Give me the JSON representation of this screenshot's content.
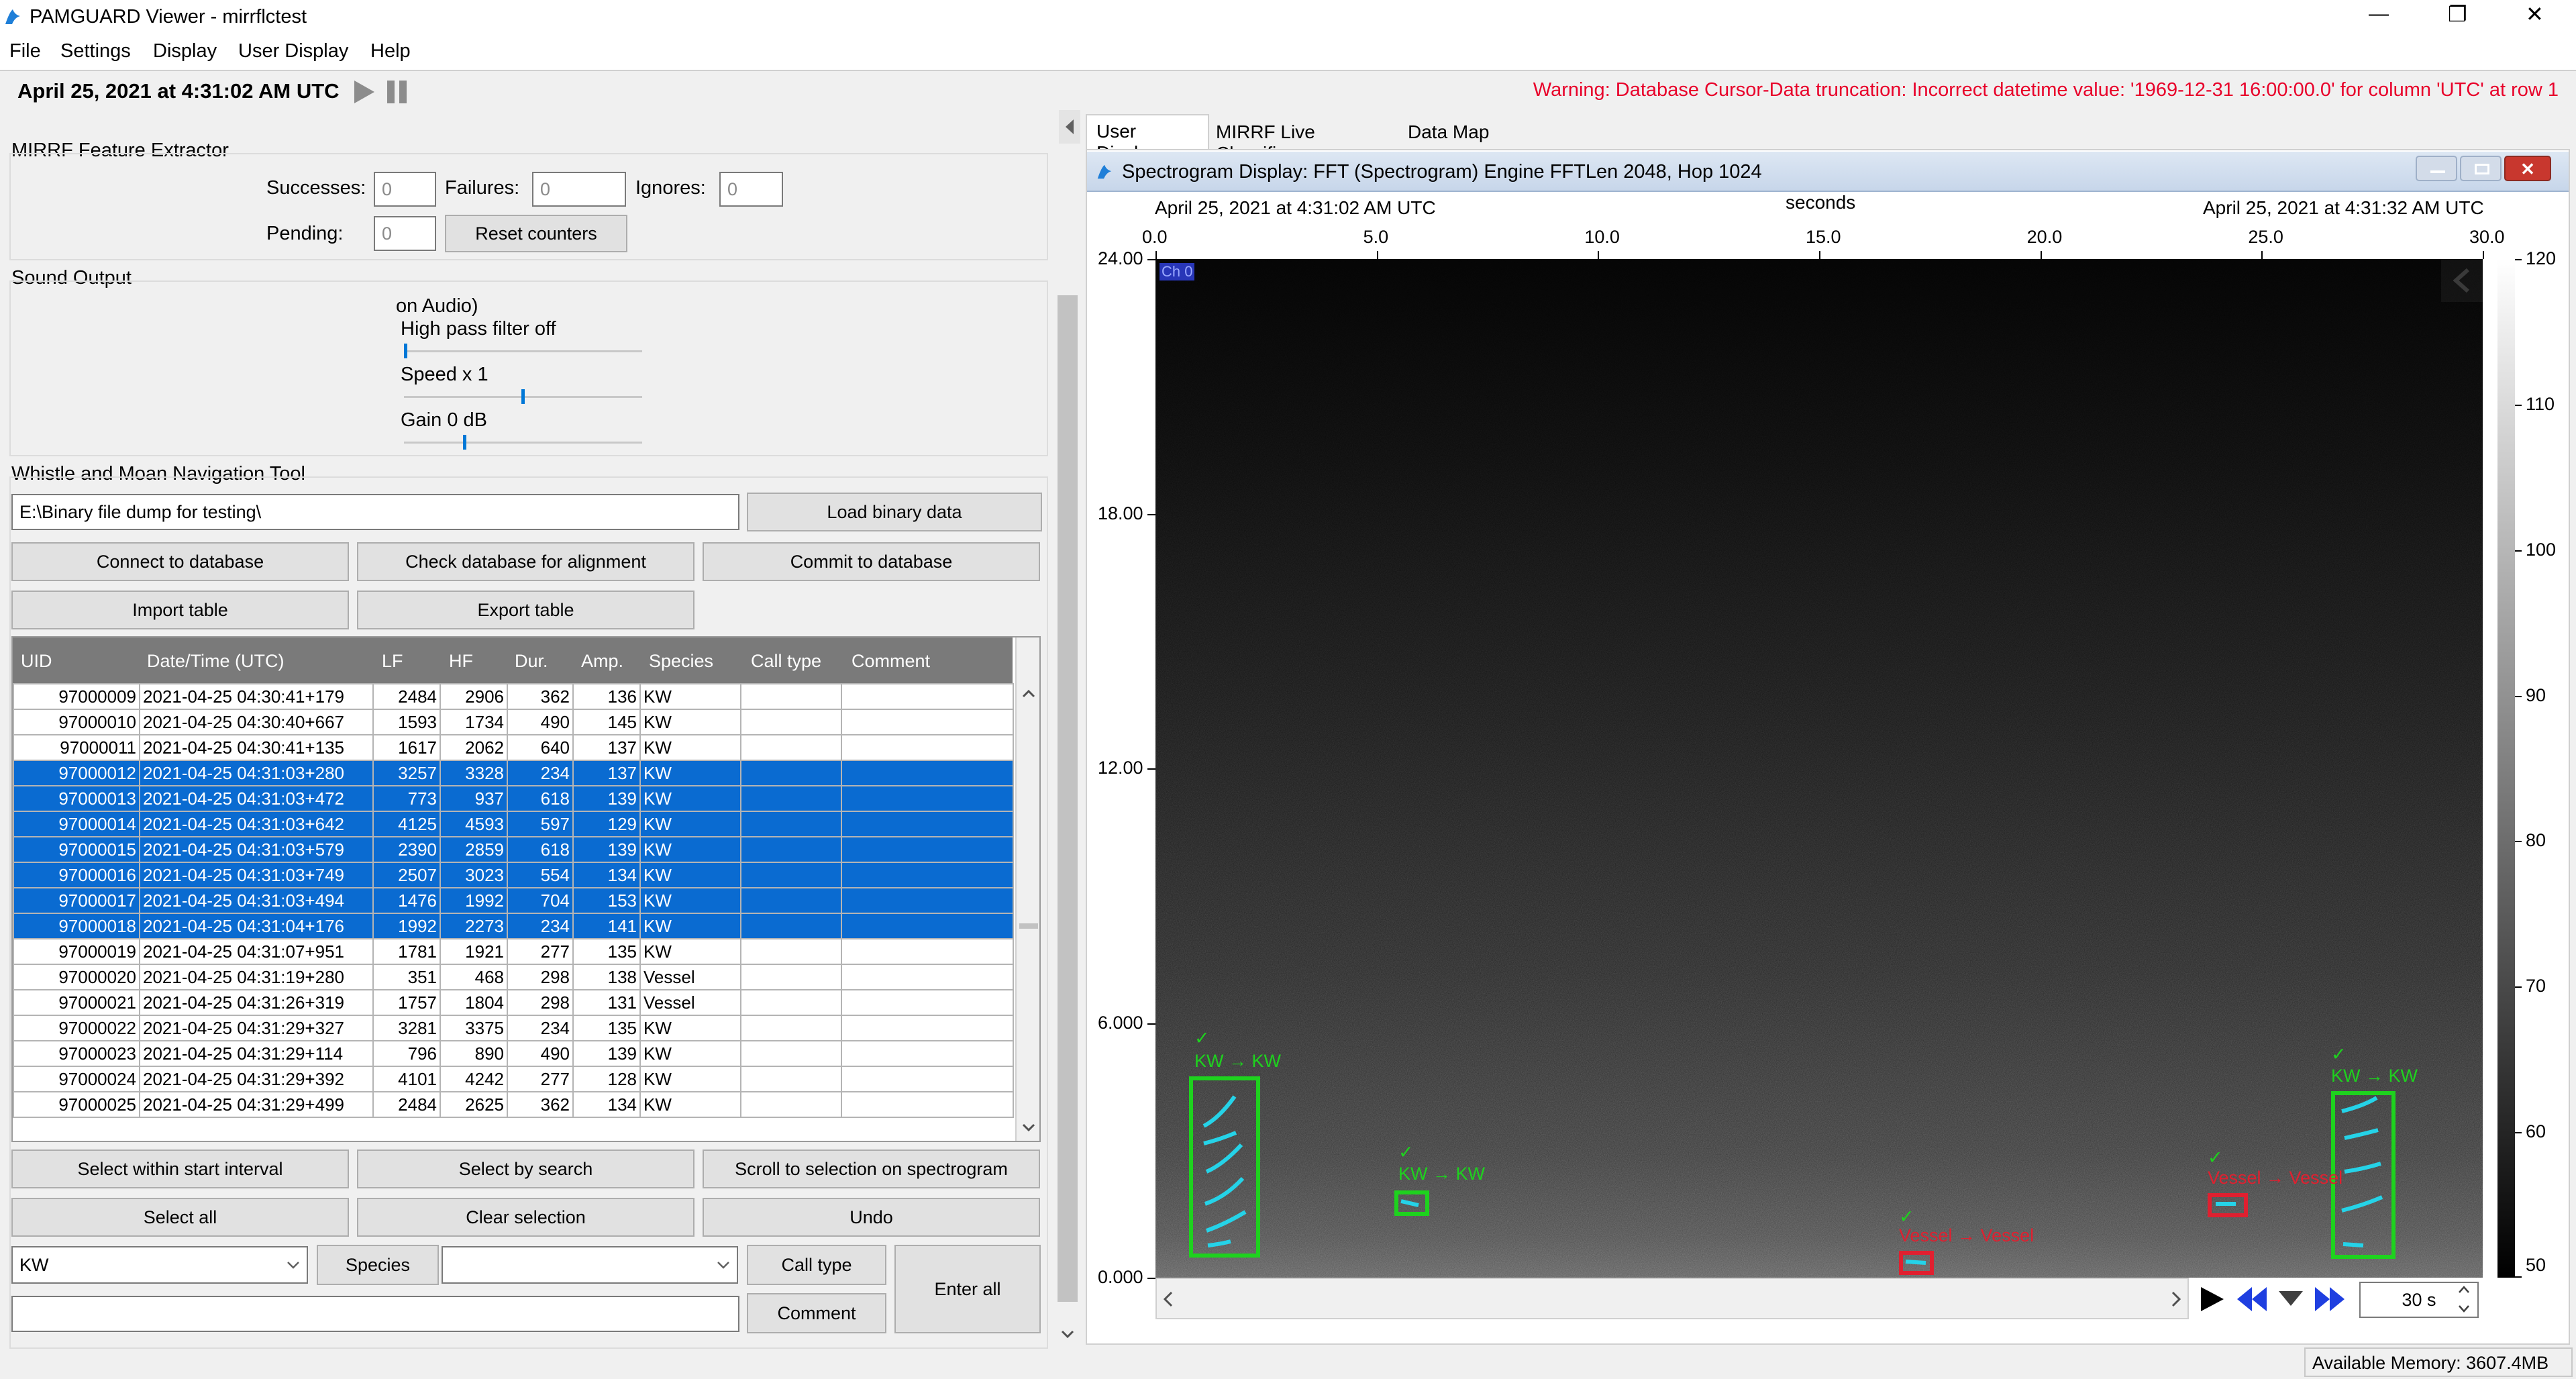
{
  "window": {
    "title": "PAMGUARD Viewer - mirrflctest",
    "controls": {
      "minimize": "—",
      "restore": "❐",
      "close": "✕"
    }
  },
  "menu": [
    "File",
    "Settings",
    "Display",
    "User Display",
    "Help"
  ],
  "timebar": {
    "datetime": "April 25, 2021 at 4:31:02 AM UTC"
  },
  "warning": "Warning: Database Cursor-Data truncation: Incorrect datetime value: '1969-12-31 16:00:00.0' for column 'UTC' at row 1",
  "mirrf": {
    "title": "MIRRF Feature Extractor",
    "successes_label": "Successes:",
    "successes_value": "0",
    "failures_label": "Failures:",
    "failures_value": "0",
    "ignores_label": "Ignores:",
    "ignores_value": "0",
    "pending_label": "Pending:",
    "pending_value": "0",
    "reset_label": "Reset counters"
  },
  "sound": {
    "title": "Sound Output",
    "on_audio": "on Audio)",
    "hpf": "High pass filter off",
    "speed": "Speed  x 1",
    "gain": "Gain 0 dB",
    "hpf_level": 0.0,
    "speed_level": 0.5,
    "gain_level": 0.25
  },
  "wmnt": {
    "title": "Whistle and Moan Navigation Tool",
    "path": "E:\\Binary file dump for testing\\",
    "load_binary": "Load binary data",
    "connect_db": "Connect to database",
    "check_db": "Check database for alignment",
    "commit_db": "Commit to database",
    "import_table": "Import table",
    "export_table": "Export table",
    "columns": [
      "UID",
      "Date/Time (UTC)",
      "LF",
      "HF",
      "Dur.",
      "Amp.",
      "Species",
      "Call type",
      "Comment"
    ],
    "rows": [
      {
        "uid": "97000009",
        "dt": "2021-04-25 04:30:41+179",
        "lf": "2484",
        "hf": "2906",
        "dur": "362",
        "amp": "136",
        "sp": "KW",
        "sel": false
      },
      {
        "uid": "97000010",
        "dt": "2021-04-25 04:30:40+667",
        "lf": "1593",
        "hf": "1734",
        "dur": "490",
        "amp": "145",
        "sp": "KW",
        "sel": false
      },
      {
        "uid": "97000011",
        "dt": "2021-04-25 04:30:41+135",
        "lf": "1617",
        "hf": "2062",
        "dur": "640",
        "amp": "137",
        "sp": "KW",
        "sel": false
      },
      {
        "uid": "97000012",
        "dt": "2021-04-25 04:31:03+280",
        "lf": "3257",
        "hf": "3328",
        "dur": "234",
        "amp": "137",
        "sp": "KW",
        "sel": true
      },
      {
        "uid": "97000013",
        "dt": "2021-04-25 04:31:03+472",
        "lf": "773",
        "hf": "937",
        "dur": "618",
        "amp": "139",
        "sp": "KW",
        "sel": true
      },
      {
        "uid": "97000014",
        "dt": "2021-04-25 04:31:03+642",
        "lf": "4125",
        "hf": "4593",
        "dur": "597",
        "amp": "129",
        "sp": "KW",
        "sel": true
      },
      {
        "uid": "97000015",
        "dt": "2021-04-25 04:31:03+579",
        "lf": "2390",
        "hf": "2859",
        "dur": "618",
        "amp": "139",
        "sp": "KW",
        "sel": true
      },
      {
        "uid": "97000016",
        "dt": "2021-04-25 04:31:03+749",
        "lf": "2507",
        "hf": "3023",
        "dur": "554",
        "amp": "134",
        "sp": "KW",
        "sel": true
      },
      {
        "uid": "97000017",
        "dt": "2021-04-25 04:31:03+494",
        "lf": "1476",
        "hf": "1992",
        "dur": "704",
        "amp": "153",
        "sp": "KW",
        "sel": true
      },
      {
        "uid": "97000018",
        "dt": "2021-04-25 04:31:04+176",
        "lf": "1992",
        "hf": "2273",
        "dur": "234",
        "amp": "141",
        "sp": "KW",
        "sel": true
      },
      {
        "uid": "97000019",
        "dt": "2021-04-25 04:31:07+951",
        "lf": "1781",
        "hf": "1921",
        "dur": "277",
        "amp": "135",
        "sp": "KW",
        "sel": false
      },
      {
        "uid": "97000020",
        "dt": "2021-04-25 04:31:19+280",
        "lf": "351",
        "hf": "468",
        "dur": "298",
        "amp": "138",
        "sp": "Vessel",
        "sel": false
      },
      {
        "uid": "97000021",
        "dt": "2021-04-25 04:31:26+319",
        "lf": "1757",
        "hf": "1804",
        "dur": "298",
        "amp": "131",
        "sp": "Vessel",
        "sel": false
      },
      {
        "uid": "97000022",
        "dt": "2021-04-25 04:31:29+327",
        "lf": "3281",
        "hf": "3375",
        "dur": "234",
        "amp": "135",
        "sp": "KW",
        "sel": false
      },
      {
        "uid": "97000023",
        "dt": "2021-04-25 04:31:29+114",
        "lf": "796",
        "hf": "890",
        "dur": "490",
        "amp": "139",
        "sp": "KW",
        "sel": false
      },
      {
        "uid": "97000024",
        "dt": "2021-04-25 04:31:29+392",
        "lf": "4101",
        "hf": "4242",
        "dur": "277",
        "amp": "128",
        "sp": "KW",
        "sel": false
      },
      {
        "uid": "97000025",
        "dt": "2021-04-25 04:31:29+499",
        "lf": "2484",
        "hf": "2625",
        "dur": "362",
        "amp": "134",
        "sp": "KW",
        "sel": false
      }
    ],
    "select_start": "Select within start interval",
    "select_search": "Select by search",
    "scroll_sel": "Scroll to selection on spectrogram",
    "select_all": "Select all",
    "clear_sel": "Clear selection",
    "undo": "Undo",
    "species_value": "KW",
    "species_btn": "Species",
    "calltype_value": "",
    "calltype_btn": "Call type",
    "comment_btn": "Comment",
    "comment_value": "",
    "enter_all": "Enter all"
  },
  "tabs": [
    "User Display",
    "MIRRF Live Classifier",
    "Data Map"
  ],
  "spectrogram": {
    "title": "Spectrogram Display: FFT (Spectrogram) Engine FFTLen 2048, Hop 1024",
    "start_time": "April 25, 2021 at 4:31:02 AM UTC",
    "end_time": "April 25, 2021 at 4:31:32 AM UTC",
    "x_axis_label": "seconds",
    "x_ticks": [
      "0.0",
      "5.0",
      "10.0",
      "15.0",
      "20.0",
      "25.0",
      "30.0"
    ],
    "y_ticks": [
      "24.00",
      "18.00",
      "12.00",
      "6.000",
      "0.000"
    ],
    "channel": "Ch 0",
    "colorbar_ticks": [
      "120",
      "110",
      "100",
      "90",
      "80",
      "70",
      "60",
      "50"
    ],
    "window_value": "30 s",
    "detections": [
      {
        "label": "KW → KW",
        "check": "✓",
        "color": "green"
      },
      {
        "label": "KW → KW",
        "check": "✓",
        "color": "green"
      },
      {
        "label": "Vessel → Vessel",
        "check": "✓",
        "color": "red"
      },
      {
        "label": "Vessel → Vessel",
        "check": "✓",
        "color": "red"
      },
      {
        "label": "KW → KW",
        "check": "✓",
        "color": "green"
      }
    ]
  },
  "status": {
    "memory": "Available Memory: 3607.4MB"
  },
  "colors": {
    "selected_row": "#0a6bd1",
    "warning": "#e8002a",
    "green_box": "#1ed21e",
    "red_box": "#e02030"
  }
}
